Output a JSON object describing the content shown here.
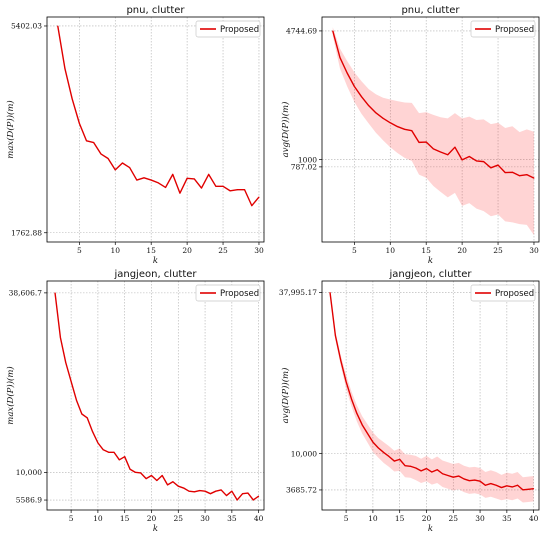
{
  "chart_data": [
    {
      "type": "line",
      "title": "pnu, clutter",
      "xlabel": "k",
      "ylabel": "max(D(P))(m)",
      "xlim": [
        0.5,
        30.7
      ],
      "ylim": [
        1600,
        5560
      ],
      "xticks": [
        5,
        10,
        15,
        20,
        25,
        30
      ],
      "yticks": [
        1762.88,
        5402.03
      ],
      "ytick_labels": [
        "1762.88",
        "5402.03"
      ],
      "grid": true,
      "legend": "top-right",
      "band": false,
      "series": [
        {
          "name": "Proposed",
          "x": [
            2,
            3,
            4,
            5,
            6,
            7,
            8,
            9,
            10,
            11,
            12,
            13,
            14,
            15,
            16,
            17,
            18,
            19,
            20,
            21,
            22,
            23,
            24,
            25,
            26,
            27,
            28,
            29,
            30
          ],
          "y": [
            5402,
            4650,
            4120,
            3690,
            3380,
            3350,
            3150,
            3070,
            2870,
            2990,
            2910,
            2690,
            2730,
            2690,
            2640,
            2560,
            2790,
            2460,
            2720,
            2710,
            2550,
            2790,
            2580,
            2580,
            2500,
            2520,
            2520,
            2240,
            2390
          ],
          "lower": null,
          "upper": null
        }
      ]
    },
    {
      "type": "line",
      "title": "pnu, clutter",
      "xlabel": "k",
      "ylabel": "avg(D(P))(m)",
      "xlim": [
        0.5,
        30.7
      ],
      "ylim": [
        -1400,
        5150
      ],
      "xticks": [
        5,
        10,
        15,
        20,
        25,
        30
      ],
      "yticks": [
        787.02,
        1000,
        4744.69
      ],
      "ytick_labels": [
        "787.02",
        "1000",
        "4744.69"
      ],
      "grid": true,
      "legend": "top-right",
      "band": true,
      "series": [
        {
          "name": "Proposed",
          "x": [
            2,
            3,
            4,
            5,
            6,
            7,
            8,
            9,
            10,
            11,
            12,
            13,
            14,
            15,
            16,
            17,
            18,
            19,
            20,
            21,
            22,
            23,
            24,
            25,
            26,
            27,
            28,
            29,
            30
          ],
          "y": [
            4744,
            3970,
            3520,
            3130,
            2830,
            2570,
            2360,
            2200,
            2070,
            1960,
            1880,
            1840,
            1500,
            1510,
            1310,
            1220,
            1140,
            1360,
            990,
            1090,
            960,
            940,
            760,
            840,
            620,
            630,
            530,
            560,
            460
          ],
          "lower": [
            4600,
            3650,
            3130,
            2680,
            2330,
            2050,
            1780,
            1560,
            1360,
            1190,
            1050,
            960,
            560,
            470,
            230,
            60,
            -100,
            30,
            -350,
            -270,
            -430,
            -500,
            -650,
            -600,
            -800,
            -830,
            -880,
            -900,
            -1200
          ],
          "upper": [
            4850,
            4230,
            3870,
            3540,
            3280,
            3050,
            2900,
            2800,
            2750,
            2700,
            2660,
            2650,
            2350,
            2380,
            2300,
            2230,
            2200,
            2350,
            2200,
            2250,
            2150,
            2170,
            2030,
            2070,
            1920,
            1970,
            1800,
            1880,
            1810
          ]
        }
      ]
    },
    {
      "type": "line",
      "title": "jangjeon, clutter",
      "xlabel": "k",
      "ylabel": "max(D(P))(m)",
      "xlim": [
        0.5,
        41
      ],
      "ylim": [
        4000,
        40500
      ],
      "xticks": [
        5,
        10,
        15,
        20,
        25,
        30,
        35,
        40
      ],
      "yticks": [
        5586.9,
        10000,
        38606.7
      ],
      "ytick_labels": [
        "5586.9",
        "10,000",
        "38,606.7"
      ],
      "grid": true,
      "legend": "top-right",
      "band": false,
      "series": [
        {
          "name": "Proposed",
          "x": [
            2,
            3,
            4,
            5,
            6,
            7,
            8,
            9,
            10,
            11,
            12,
            13,
            14,
            15,
            16,
            17,
            18,
            19,
            20,
            21,
            22,
            23,
            24,
            25,
            26,
            27,
            28,
            29,
            30,
            31,
            32,
            33,
            34,
            35,
            36,
            37,
            38,
            39,
            40
          ],
          "y": [
            38600,
            31500,
            27500,
            24500,
            21500,
            19300,
            18700,
            16500,
            14700,
            13600,
            13200,
            13200,
            12000,
            12500,
            10500,
            10000,
            9900,
            9000,
            9500,
            8700,
            9500,
            8000,
            8500,
            7800,
            7500,
            7000,
            6900,
            7100,
            7000,
            6600,
            7000,
            7200,
            6300,
            7000,
            5600,
            6600,
            6700,
            5600,
            6200
          ],
          "lower": null,
          "upper": null
        }
      ]
    },
    {
      "type": "line",
      "title": "jangjeon, clutter",
      "xlabel": "k",
      "ylabel": "avg(D(P))(m)",
      "xlim": [
        0.5,
        41
      ],
      "ylim": [
        200,
        40000
      ],
      "xticks": [
        5,
        10,
        15,
        20,
        25,
        30,
        35,
        40
      ],
      "yticks": [
        3685.72,
        10000,
        37995.17
      ],
      "ytick_labels": [
        "3685.72",
        "10,000",
        "37,995.17"
      ],
      "grid": true,
      "legend": "top-right",
      "band": true,
      "series": [
        {
          "name": "Proposed",
          "x": [
            2,
            3,
            4,
            5,
            6,
            7,
            8,
            9,
            10,
            11,
            12,
            13,
            14,
            15,
            16,
            17,
            18,
            19,
            20,
            21,
            22,
            23,
            24,
            25,
            26,
            27,
            28,
            29,
            30,
            31,
            32,
            33,
            34,
            35,
            36,
            37,
            38,
            39,
            40
          ],
          "y": [
            37995,
            30500,
            26200,
            22500,
            19500,
            17000,
            15000,
            13500,
            12000,
            11000,
            10200,
            9500,
            8700,
            9000,
            7900,
            7800,
            7500,
            7000,
            7400,
            6800,
            7200,
            6500,
            6200,
            5900,
            6100,
            5600,
            5300,
            5400,
            5200,
            4500,
            4800,
            4500,
            4100,
            4400,
            4200,
            4500,
            3700,
            3800,
            3900
          ],
          "lower": [
            37700,
            29800,
            25300,
            21300,
            18200,
            15600,
            13500,
            11900,
            10300,
            9300,
            8400,
            7700,
            6900,
            7000,
            5900,
            5800,
            5400,
            4900,
            5200,
            4600,
            4900,
            4200,
            3900,
            3600,
            3800,
            3300,
            3000,
            3100,
            2900,
            2300,
            2500,
            2200,
            1900,
            2100,
            1900,
            2200,
            1500,
            1600,
            1700
          ],
          "upper": [
            38200,
            31200,
            27100,
            23700,
            20800,
            18400,
            16500,
            15100,
            13700,
            12700,
            12000,
            11300,
            10500,
            10900,
            9900,
            9800,
            9600,
            9100,
            9600,
            9000,
            9500,
            8800,
            8500,
            8200,
            8400,
            7900,
            7600,
            7700,
            7500,
            6800,
            7100,
            6800,
            6300,
            6700,
            6500,
            6800,
            5900,
            6000,
            6100
          ]
        }
      ]
    }
  ]
}
